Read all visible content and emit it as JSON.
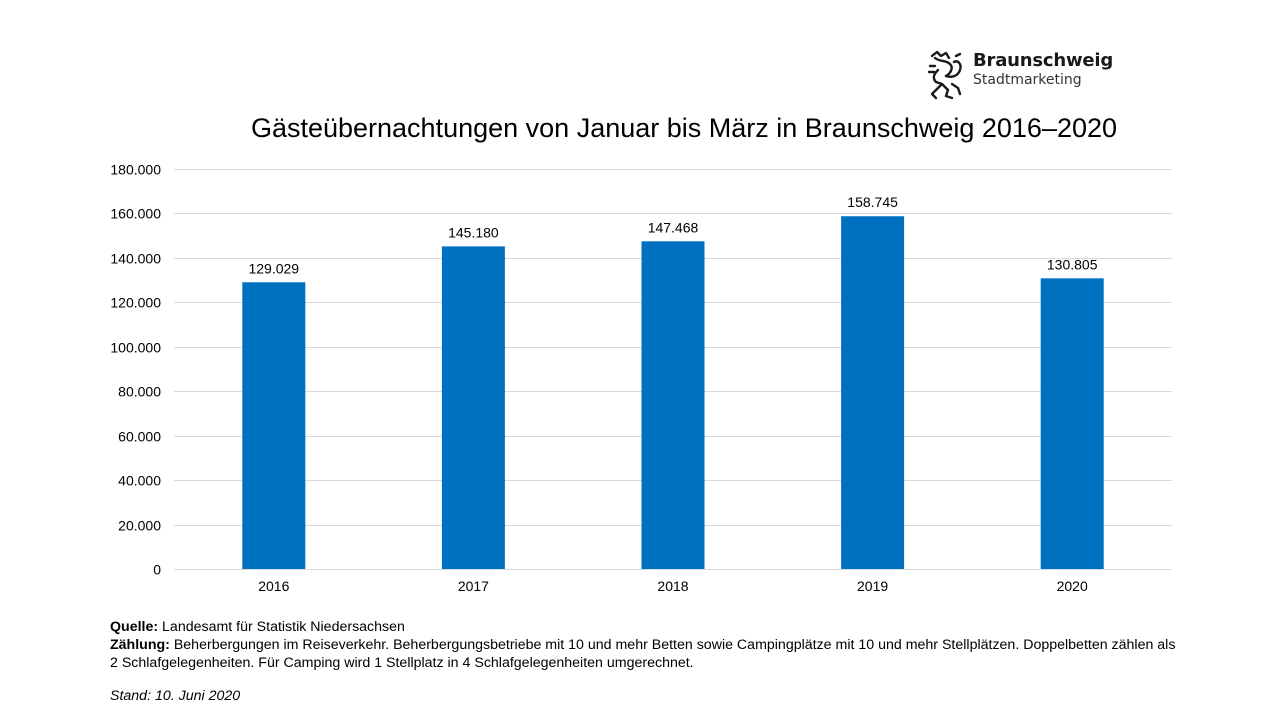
{
  "logo": {
    "name": "Braunschweig",
    "subtitle": "Stadtmarketing",
    "icon": "braunschweig-lion-icon"
  },
  "chart_data": {
    "type": "bar",
    "title": "Gästeübernachtungen von Januar bis März in Braunschweig 2016–2020",
    "categories": [
      "2016",
      "2017",
      "2018",
      "2019",
      "2020"
    ],
    "values": [
      129029,
      145180,
      147468,
      158745,
      130805
    ],
    "value_labels": [
      "129.029",
      "145.180",
      "147.468",
      "158.745",
      "130.805"
    ],
    "ylim": [
      0,
      180000
    ],
    "yticks": [
      0,
      20000,
      40000,
      60000,
      80000,
      100000,
      120000,
      140000,
      160000,
      180000
    ],
    "ytick_labels": [
      "0",
      "20.000",
      "40.000",
      "60.000",
      "80.000",
      "100.000",
      "120.000",
      "140.000",
      "160.000",
      "180.000"
    ],
    "xlabel": "",
    "ylabel": "",
    "grid": true,
    "colors": {
      "bar": "#0070C0",
      "grid": "#D9D9D9",
      "axis": "#D9D9D9"
    }
  },
  "notes": {
    "source_label": "Quelle:",
    "source_text": " Landesamt für Statistik Niedersachsen",
    "counting_label": "Zählung:",
    "counting_text": " Beherbergungen im Reiseverkehr. Beherbergungsbetriebe mit 10 und mehr Betten sowie Campingplätze mit 10 und mehr Stellplätzen. Doppelbetten zählen als",
    "counting_text_2": "2 Schlafgelegenheiten. Für Camping wird 1 Stellplatz in 4 Schlafgelegenheiten umgerechnet.",
    "stand": "Stand: 10. Juni 2020"
  }
}
